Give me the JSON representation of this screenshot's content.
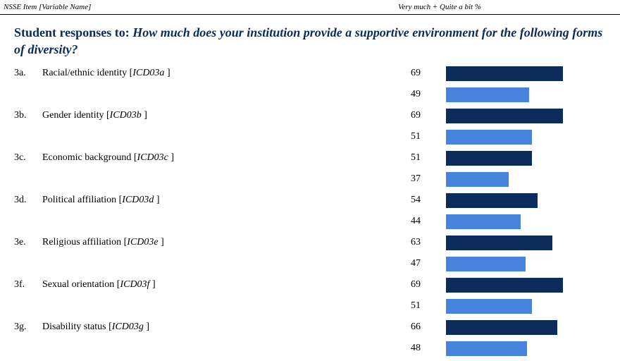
{
  "header": {
    "left": "NSSE Item [Variable Name]",
    "right": "Very much + Quite a bit %"
  },
  "chart_data": {
    "type": "bar",
    "orientation": "horizontal",
    "title_prefix": "Student responses to:",
    "title": "How much does your institution provide a supportive environment for the following forms of diversity?",
    "codes": [
      "3a.",
      "3b.",
      "3c.",
      "3d.",
      "3e.",
      "3f.",
      "3g."
    ],
    "categories": [
      "Racial/ethnic identity",
      "Gender identity",
      "Economic background",
      "Political affiliation",
      "Religious affiliation",
      "Sexual orientation",
      "Disability status"
    ],
    "variables": [
      "ICD03a ",
      "ICD03b ",
      "ICD03c ",
      "ICD03d ",
      "ICD03e ",
      "ICD03f ",
      "ICD03g "
    ],
    "xlim": [
      0,
      100
    ],
    "series": [
      {
        "color": "#0b2b5a",
        "values": [
          69,
          69,
          51,
          54,
          63,
          69,
          66
        ]
      },
      {
        "color": "#4683dc",
        "values": [
          49,
          51,
          37,
          44,
          47,
          51,
          48
        ]
      }
    ]
  }
}
